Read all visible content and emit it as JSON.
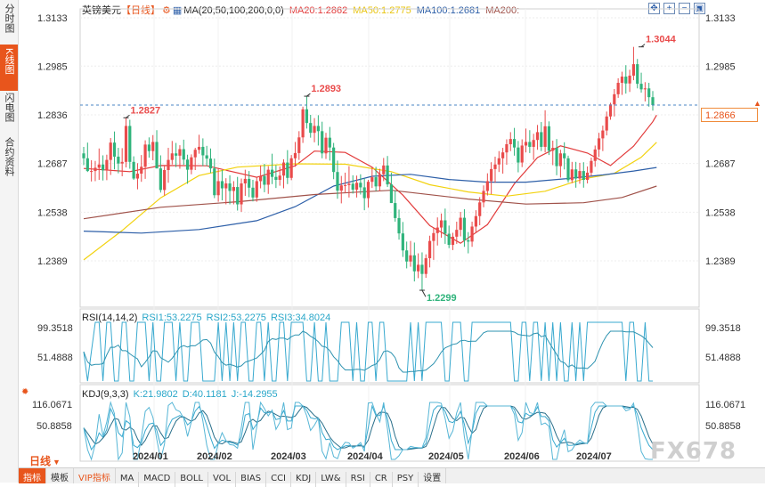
{
  "sidebar": {
    "tabs": [
      {
        "label": "分时图",
        "active": false
      },
      {
        "label": "K线图",
        "active": true
      },
      {
        "label": "闪电图",
        "active": false
      },
      {
        "label": "合约资料",
        "active": false
      }
    ]
  },
  "header": {
    "symbol": "英镑美元",
    "period": "【日线】",
    "ma_params": "MA(20,50,100,200,0,0)",
    "ma20": "MA20:1.2862",
    "ma50": "MA50:1.2775",
    "ma100": "MA100:1.2681",
    "ma200": "MA200:"
  },
  "colors": {
    "up": "#e94b4b",
    "down": "#2fb37b",
    "ma20": "#e23b3b",
    "ma50": "#f2d20f",
    "ma100": "#2d5fa8",
    "ma200": "#a0524a",
    "accent": "#e8551c",
    "axis": "#333333"
  },
  "price_axis": {
    "labels": [
      "1.3133",
      "1.2985",
      "1.2836",
      "1.2687",
      "1.2538",
      "1.2389"
    ],
    "values": [
      1.3133,
      1.2985,
      1.2836,
      1.2687,
      1.2538,
      1.2389
    ]
  },
  "last_price": "1.2866",
  "annotations": {
    "high_1": "1.2827",
    "high_2": "1.2893",
    "high_3": "1.3044",
    "low_1": "1.2299"
  },
  "rsi": {
    "header": "RSI(14,14,2)",
    "rsi1": "RSI1:53.2275",
    "rsi2": "RSI2:53.2275",
    "rsi3": "RSI3:34.8024",
    "axis": [
      "99.3518",
      "51.4888"
    ]
  },
  "kdj": {
    "header": "KDJ(9,3,3)",
    "k": "K:21.9802",
    "d": "D:40.1181",
    "j": "J:-14.2955",
    "axis": [
      "116.0671",
      "50.8858"
    ]
  },
  "x_axis": {
    "labels": [
      "2024/01",
      "2024/02",
      "2024/03",
      "2024/04",
      "2024/05",
      "2024/06",
      "2024/07"
    ]
  },
  "period_label": "日线",
  "bottom_bar": [
    "指标",
    "模板",
    "VIP指标",
    "MA",
    "MACD",
    "BOLL",
    "VOL",
    "BIAS",
    "CCI",
    "KDJ",
    "LW&",
    "RSI",
    "CR",
    "PSY",
    "设置"
  ],
  "watermark": "FX678",
  "chart_data": {
    "type": "candlestick",
    "symbol": "英镑美元",
    "period": "日线",
    "ylim": [
      1.226,
      1.316
    ],
    "x_ticks": [
      "2024/01",
      "2024/02",
      "2024/03",
      "2024/04",
      "2024/05",
      "2024/06",
      "2024/07"
    ],
    "candles_ohlc": [
      [
        1.2718,
        1.2738,
        1.2682,
        1.2703
      ],
      [
        1.2703,
        1.2751,
        1.2661,
        1.2664
      ],
      [
        1.2664,
        1.2697,
        1.2632,
        1.2664
      ],
      [
        1.2664,
        1.2695,
        1.2633,
        1.2674
      ],
      [
        1.2674,
        1.2733,
        1.2637,
        1.2684
      ],
      [
        1.2684,
        1.2712,
        1.2635,
        1.2666
      ],
      [
        1.2666,
        1.2714,
        1.2636,
        1.2698
      ],
      [
        1.2698,
        1.2765,
        1.2652,
        1.2751
      ],
      [
        1.2751,
        1.2785,
        1.2669,
        1.2708
      ],
      [
        1.2708,
        1.2735,
        1.2657,
        1.2687
      ],
      [
        1.2687,
        1.2734,
        1.2648,
        1.2692
      ],
      [
        1.2692,
        1.2827,
        1.2675,
        1.2802
      ],
      [
        1.2802,
        1.2821,
        1.2671,
        1.2692
      ],
      [
        1.2692,
        1.2709,
        1.2637,
        1.2641
      ],
      [
        1.2641,
        1.2688,
        1.2608,
        1.2656
      ],
      [
        1.2656,
        1.2713,
        1.2631,
        1.2677
      ],
      [
        1.2677,
        1.2758,
        1.264,
        1.2745
      ],
      [
        1.2745,
        1.2767,
        1.2705,
        1.2725
      ],
      [
        1.2725,
        1.2774,
        1.2697,
        1.2753
      ],
      [
        1.2753,
        1.2789,
        1.2672,
        1.2672
      ],
      [
        1.2672,
        1.2712,
        1.2598,
        1.2606
      ],
      [
        1.2606,
        1.2679,
        1.2589,
        1.2667
      ],
      [
        1.2667,
        1.2735,
        1.2628,
        1.2698
      ],
      [
        1.2698,
        1.2756,
        1.2684,
        1.2718
      ],
      [
        1.2718,
        1.275,
        1.2676,
        1.2711
      ],
      [
        1.2711,
        1.2743,
        1.2671,
        1.2731
      ],
      [
        1.2731,
        1.276,
        1.2683,
        1.2699
      ],
      [
        1.2699,
        1.2714,
        1.2625,
        1.2668
      ],
      [
        1.2668,
        1.2715,
        1.2654,
        1.2706
      ],
      [
        1.2706,
        1.2735,
        1.2667,
        1.2729
      ],
      [
        1.2729,
        1.2775,
        1.2717,
        1.2738
      ],
      [
        1.2738,
        1.2764,
        1.2679,
        1.2712
      ],
      [
        1.2712,
        1.2741,
        1.2679,
        1.2702
      ],
      [
        1.2702,
        1.2733,
        1.2658,
        1.2672
      ],
      [
        1.2672,
        1.2702,
        1.2581,
        1.259
      ],
      [
        1.259,
        1.2671,
        1.257,
        1.2633
      ],
      [
        1.2633,
        1.2667,
        1.2574,
        1.2611
      ],
      [
        1.2611,
        1.2642,
        1.2562,
        1.2626
      ],
      [
        1.2626,
        1.2651,
        1.2562,
        1.2603
      ],
      [
        1.2603,
        1.2633,
        1.2562,
        1.2615
      ],
      [
        1.2615,
        1.2646,
        1.2543,
        1.2562
      ],
      [
        1.2562,
        1.2641,
        1.2539,
        1.2626
      ],
      [
        1.2626,
        1.2668,
        1.2588,
        1.264
      ],
      [
        1.264,
        1.2664,
        1.2584,
        1.2613
      ],
      [
        1.2613,
        1.2637,
        1.2571,
        1.2583
      ],
      [
        1.2583,
        1.2644,
        1.257,
        1.2633
      ],
      [
        1.2633,
        1.2681,
        1.2611,
        1.2649
      ],
      [
        1.2649,
        1.2686,
        1.2599,
        1.2622
      ],
      [
        1.2622,
        1.2679,
        1.2594,
        1.2668
      ],
      [
        1.2668,
        1.2717,
        1.2624,
        1.2646
      ],
      [
        1.2646,
        1.2682,
        1.2612,
        1.2637
      ],
      [
        1.2637,
        1.2678,
        1.2619,
        1.265
      ],
      [
        1.265,
        1.27,
        1.2611,
        1.269
      ],
      [
        1.269,
        1.2728,
        1.2624,
        1.2643
      ],
      [
        1.2643,
        1.2713,
        1.2636,
        1.2703
      ],
      [
        1.2703,
        1.2753,
        1.2677,
        1.2719
      ],
      [
        1.2719,
        1.2786,
        1.2698,
        1.2767
      ],
      [
        1.2767,
        1.2861,
        1.275,
        1.2853
      ],
      [
        1.2853,
        1.2893,
        1.2794,
        1.2811
      ],
      [
        1.2811,
        1.2836,
        1.2766,
        1.2781
      ],
      [
        1.2781,
        1.2826,
        1.2752,
        1.2802
      ],
      [
        1.2802,
        1.2835,
        1.2742,
        1.2786
      ],
      [
        1.2786,
        1.2815,
        1.2703,
        1.2718
      ],
      [
        1.2718,
        1.2781,
        1.2701,
        1.2766
      ],
      [
        1.2766,
        1.2799,
        1.2696,
        1.2736
      ],
      [
        1.2736,
        1.275,
        1.2639,
        1.2661
      ],
      [
        1.2661,
        1.2696,
        1.2579,
        1.2604
      ],
      [
        1.2604,
        1.2649,
        1.2565,
        1.262
      ],
      [
        1.262,
        1.2659,
        1.2596,
        1.2621
      ],
      [
        1.2621,
        1.2679,
        1.2583,
        1.2625
      ],
      [
        1.2625,
        1.2651,
        1.2595,
        1.2607
      ],
      [
        1.2607,
        1.265,
        1.2583,
        1.2628
      ],
      [
        1.2628,
        1.2654,
        1.2592,
        1.2614
      ],
      [
        1.2614,
        1.2642,
        1.2544,
        1.2581
      ],
      [
        1.2581,
        1.2637,
        1.2552,
        1.2631
      ],
      [
        1.2631,
        1.2676,
        1.2612,
        1.2645
      ],
      [
        1.2645,
        1.2677,
        1.2603,
        1.2617
      ],
      [
        1.2617,
        1.2671,
        1.2602,
        1.2654
      ],
      [
        1.2654,
        1.2704,
        1.2633,
        1.2681
      ],
      [
        1.2681,
        1.271,
        1.2615,
        1.2623
      ],
      [
        1.2623,
        1.2659,
        1.2566,
        1.2566
      ],
      [
        1.2566,
        1.2604,
        1.2509,
        1.252
      ],
      [
        1.252,
        1.2546,
        1.2454,
        1.2473
      ],
      [
        1.2473,
        1.2508,
        1.2401,
        1.2421
      ],
      [
        1.2421,
        1.2448,
        1.2366,
        1.2387
      ],
      [
        1.2387,
        1.245,
        1.2371,
        1.2406
      ],
      [
        1.2406,
        1.2445,
        1.2326,
        1.2357
      ],
      [
        1.2357,
        1.2412,
        1.2336,
        1.2377
      ],
      [
        1.2377,
        1.2415,
        1.2299,
        1.2349
      ],
      [
        1.2349,
        1.2409,
        1.2337,
        1.2397
      ],
      [
        1.2397,
        1.2466,
        1.2369,
        1.245
      ],
      [
        1.245,
        1.2491,
        1.2392,
        1.2474
      ],
      [
        1.2474,
        1.2522,
        1.2436,
        1.2491
      ],
      [
        1.2491,
        1.2534,
        1.246,
        1.2513
      ],
      [
        1.2513,
        1.2549,
        1.2441,
        1.2472
      ],
      [
        1.2472,
        1.2497,
        1.2428,
        1.2438
      ],
      [
        1.2438,
        1.2475,
        1.2422,
        1.2463
      ],
      [
        1.2463,
        1.2509,
        1.2441,
        1.2484
      ],
      [
        1.2484,
        1.2539,
        1.2464,
        1.2521
      ],
      [
        1.2521,
        1.2547,
        1.2432,
        1.2452
      ],
      [
        1.2452,
        1.2477,
        1.2412,
        1.2448
      ],
      [
        1.2448,
        1.2509,
        1.2432,
        1.2494
      ],
      [
        1.2494,
        1.2544,
        1.2474,
        1.2526
      ],
      [
        1.2526,
        1.2584,
        1.2498,
        1.2568
      ],
      [
        1.2568,
        1.262,
        1.2553,
        1.2603
      ],
      [
        1.2603,
        1.2657,
        1.2589,
        1.2633
      ],
      [
        1.2633,
        1.2691,
        1.2593,
        1.267
      ],
      [
        1.267,
        1.2708,
        1.2628,
        1.2684
      ],
      [
        1.2684,
        1.2725,
        1.2661,
        1.2703
      ],
      [
        1.2703,
        1.2735,
        1.2656,
        1.2721
      ],
      [
        1.2721,
        1.2761,
        1.2683,
        1.2746
      ],
      [
        1.2746,
        1.2783,
        1.2725,
        1.2762
      ],
      [
        1.2762,
        1.2796,
        1.2711,
        1.2736
      ],
      [
        1.2736,
        1.2756,
        1.266,
        1.269
      ],
      [
        1.269,
        1.2761,
        1.2676,
        1.2742
      ],
      [
        1.2742,
        1.2794,
        1.2721,
        1.2753
      ],
      [
        1.2753,
        1.2789,
        1.2719,
        1.2738
      ],
      [
        1.2738,
        1.2778,
        1.2698,
        1.2759
      ],
      [
        1.2759,
        1.2805,
        1.2729,
        1.2783
      ],
      [
        1.2783,
        1.2814,
        1.2725,
        1.2738
      ],
      [
        1.2738,
        1.285,
        1.2721,
        1.2801
      ],
      [
        1.2801,
        1.2816,
        1.2713,
        1.2726
      ],
      [
        1.2726,
        1.2757,
        1.2682,
        1.2735
      ],
      [
        1.2735,
        1.2762,
        1.2651,
        1.2679
      ],
      [
        1.2679,
        1.2729,
        1.2644,
        1.2718
      ],
      [
        1.2718,
        1.2752,
        1.2669,
        1.2703
      ],
      [
        1.2703,
        1.2711,
        1.2629,
        1.2636
      ],
      [
        1.2636,
        1.2692,
        1.2627,
        1.2669
      ],
      [
        1.2669,
        1.2692,
        1.2613,
        1.2641
      ],
      [
        1.2641,
        1.2689,
        1.2625,
        1.2664
      ],
      [
        1.2664,
        1.2691,
        1.2613,
        1.2637
      ],
      [
        1.2637,
        1.2678,
        1.2626,
        1.2659
      ],
      [
        1.2659,
        1.2705,
        1.2649,
        1.2695
      ],
      [
        1.2695,
        1.2742,
        1.2677,
        1.273
      ],
      [
        1.273,
        1.2781,
        1.2707,
        1.2764
      ],
      [
        1.2764,
        1.2803,
        1.2725,
        1.2788
      ],
      [
        1.2788,
        1.2846,
        1.2773,
        1.2831
      ],
      [
        1.2831,
        1.2873,
        1.2821,
        1.2868
      ],
      [
        1.2868,
        1.2915,
        1.2831,
        1.2899
      ],
      [
        1.2899,
        1.2948,
        1.2888,
        1.2934
      ],
      [
        1.2934,
        1.2968,
        1.2897,
        1.2953
      ],
      [
        1.2953,
        1.2988,
        1.2901,
        1.2932
      ],
      [
        1.2932,
        1.2974,
        1.2906,
        1.2956
      ],
      [
        1.2956,
        1.3044,
        1.2942,
        1.2991
      ],
      [
        1.2991,
        1.3007,
        1.2917,
        1.2931
      ],
      [
        1.2931,
        1.2965,
        1.2904,
        1.2914
      ],
      [
        1.2914,
        1.2936,
        1.2877,
        1.2917
      ],
      [
        1.2917,
        1.2934,
        1.2861,
        1.289
      ],
      [
        1.289,
        1.2909,
        1.2849,
        1.2866
      ]
    ],
    "ma_lines": {
      "MA20": {
        "points": [
          [
            0,
            1.2672
          ],
          [
            12,
            1.2662
          ],
          [
            20,
            1.2681
          ],
          [
            32,
            1.268
          ],
          [
            45,
            1.2645
          ],
          [
            55,
            1.268
          ],
          [
            60,
            1.2725
          ],
          [
            68,
            1.2721
          ],
          [
            75,
            1.2676
          ],
          [
            83,
            1.259
          ],
          [
            90,
            1.2497
          ],
          [
            98,
            1.2443
          ],
          [
            105,
            1.25
          ],
          [
            112,
            1.2625
          ],
          [
            118,
            1.2705
          ],
          [
            124,
            1.2741
          ],
          [
            131,
            1.2719
          ],
          [
            137,
            1.2681
          ],
          [
            143,
            1.274
          ],
          [
            148,
            1.2815
          ],
          [
            149,
            1.2835
          ]
        ]
      },
      "MA50": {
        "points": [
          [
            0,
            1.2392
          ],
          [
            10,
            1.2482
          ],
          [
            20,
            1.2582
          ],
          [
            30,
            1.265
          ],
          [
            40,
            1.2676
          ],
          [
            55,
            1.2686
          ],
          [
            68,
            1.2685
          ],
          [
            80,
            1.2662
          ],
          [
            90,
            1.2622
          ],
          [
            100,
            1.26
          ],
          [
            110,
            1.2587
          ],
          [
            120,
            1.2602
          ],
          [
            130,
            1.264
          ],
          [
            138,
            1.2657
          ],
          [
            145,
            1.2706
          ],
          [
            149,
            1.2752
          ]
        ]
      },
      "MA100": {
        "points": [
          [
            0,
            1.248
          ],
          [
            15,
            1.2474
          ],
          [
            30,
            1.2485
          ],
          [
            45,
            1.2512
          ],
          [
            55,
            1.2555
          ],
          [
            65,
            1.2618
          ],
          [
            75,
            1.2648
          ],
          [
            85,
            1.2654
          ],
          [
            95,
            1.2638
          ],
          [
            105,
            1.263
          ],
          [
            115,
            1.263
          ],
          [
            125,
            1.264
          ],
          [
            135,
            1.2652
          ],
          [
            143,
            1.2664
          ],
          [
            149,
            1.2675
          ]
        ]
      },
      "MA200": {
        "points": [
          [
            0,
            1.2518
          ],
          [
            20,
            1.2553
          ],
          [
            40,
            1.257
          ],
          [
            60,
            1.2592
          ],
          [
            80,
            1.2605
          ],
          [
            100,
            1.2578
          ],
          [
            115,
            1.2563
          ],
          [
            130,
            1.2567
          ],
          [
            140,
            1.2583
          ],
          [
            149,
            1.2618
          ]
        ]
      }
    },
    "rsi_series": {
      "RSI1": 53.2275,
      "RSI2": 53.2275,
      "RSI3": 34.8024
    },
    "kdj_series": {
      "K": 21.9802,
      "D": 40.1181,
      "J": -14.2955
    }
  }
}
